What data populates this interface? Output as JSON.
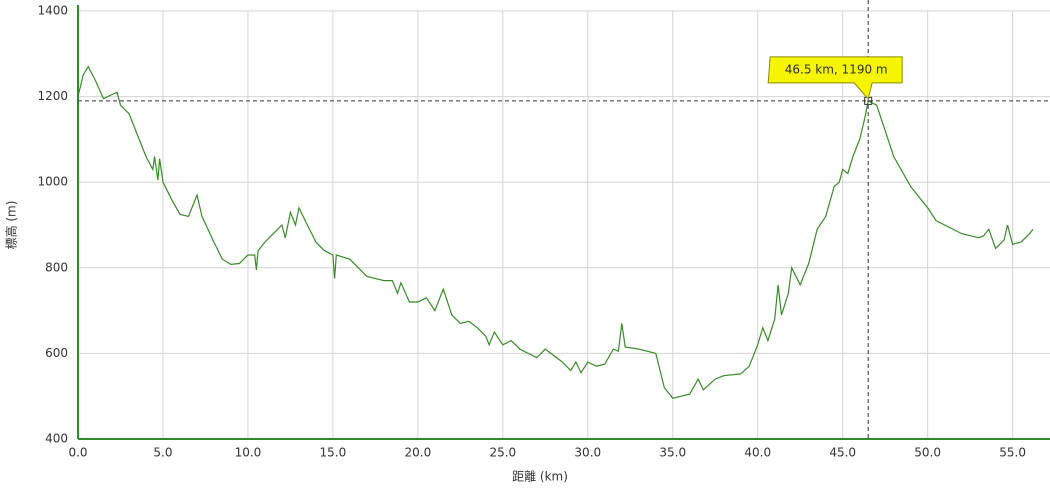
{
  "chart_data": {
    "type": "line",
    "x_label": "距離 (km)",
    "y_label": "標高 (m)",
    "xlim": [
      0,
      57.2
    ],
    "ylim": [
      400,
      1400
    ],
    "xticks": [
      {
        "value": 0,
        "label": "0.0"
      },
      {
        "value": 5,
        "label": "5.0"
      },
      {
        "value": 10,
        "label": "10.0"
      },
      {
        "value": 15,
        "label": "15.0"
      },
      {
        "value": 20,
        "label": "20.0"
      },
      {
        "value": 25,
        "label": "25.0"
      },
      {
        "value": 30,
        "label": "30.0"
      },
      {
        "value": 35,
        "label": "35.0"
      },
      {
        "value": 40,
        "label": "40.0"
      },
      {
        "value": 45,
        "label": "45.0"
      },
      {
        "value": 50,
        "label": "50.0"
      },
      {
        "value": 55,
        "label": "55.0"
      }
    ],
    "yticks": [
      400,
      600,
      800,
      1000,
      1200,
      1400
    ],
    "grid": true,
    "color": "#3a8a2a",
    "x": [
      0,
      0.3,
      0.6,
      1.0,
      1.5,
      2.0,
      2.3,
      2.5,
      3.0,
      3.5,
      4.0,
      4.4,
      4.5,
      4.7,
      4.8,
      5.0,
      5.5,
      6.0,
      6.5,
      7.0,
      7.3,
      8.0,
      8.5,
      9.0,
      9.5,
      10.0,
      10.4,
      10.5,
      10.6,
      11.0,
      11.5,
      12.0,
      12.2,
      12.5,
      12.8,
      13.0,
      13.5,
      14.0,
      14.5,
      15.0,
      15.1,
      15.2,
      16.0,
      16.5,
      17.0,
      18.0,
      18.5,
      18.8,
      19.0,
      19.5,
      20.0,
      20.5,
      21.0,
      21.5,
      22.0,
      22.5,
      23.0,
      23.5,
      24.0,
      24.2,
      24.5,
      25.0,
      25.5,
      26.0,
      27.0,
      27.5,
      28.5,
      29.0,
      29.3,
      29.6,
      30.0,
      30.5,
      31.0,
      31.5,
      31.8,
      32.0,
      32.2,
      33.0,
      34.0,
      34.5,
      35.0,
      35.5,
      36.0,
      36.5,
      36.8,
      37.5,
      38.0,
      39.0,
      39.5,
      40.0,
      40.3,
      40.6,
      41.0,
      41.2,
      41.4,
      41.8,
      42.0,
      42.5,
      43.0,
      43.5,
      44.0,
      44.5,
      44.8,
      45.0,
      45.3,
      45.6,
      46.0,
      46.3,
      46.5,
      47.0,
      47.5,
      48.0,
      49.0,
      50.0,
      50.5,
      51.0,
      52.0,
      53.0,
      53.3,
      53.6,
      54.0,
      54.5,
      54.7,
      55.0,
      55.5,
      56.0,
      56.2
    ],
    "values": [
      1200,
      1250,
      1270,
      1240,
      1195,
      1205,
      1210,
      1180,
      1160,
      1110,
      1060,
      1030,
      1060,
      1005,
      1055,
      1000,
      960,
      925,
      920,
      970,
      920,
      860,
      820,
      808,
      810,
      830,
      830,
      795,
      840,
      860,
      880,
      900,
      870,
      930,
      900,
      940,
      900,
      860,
      840,
      830,
      775,
      830,
      820,
      800,
      780,
      770,
      770,
      740,
      765,
      720,
      720,
      730,
      700,
      750,
      690,
      670,
      675,
      660,
      640,
      620,
      650,
      620,
      630,
      610,
      590,
      610,
      580,
      560,
      580,
      555,
      580,
      570,
      575,
      610,
      605,
      670,
      615,
      610,
      600,
      520,
      495,
      500,
      505,
      540,
      515,
      540,
      548,
      552,
      570,
      620,
      660,
      630,
      680,
      760,
      690,
      740,
      800,
      760,
      810,
      890,
      920,
      990,
      1000,
      1030,
      1020,
      1060,
      1100,
      1150,
      1190,
      1180,
      1120,
      1060,
      990,
      940,
      910,
      900,
      880,
      870,
      875,
      890,
      845,
      865,
      900,
      855,
      860,
      880,
      890
    ],
    "cursor": {
      "x": 46.5,
      "y": 1190,
      "label": "46.5 km, 1190 m"
    }
  }
}
